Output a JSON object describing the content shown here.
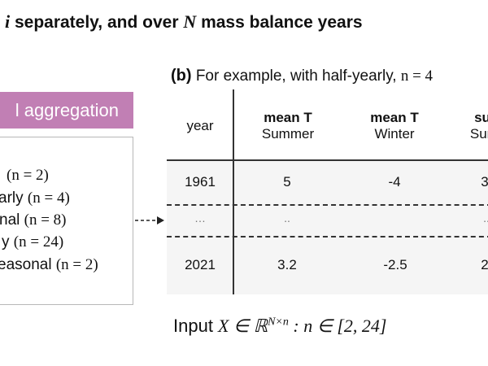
{
  "title": {
    "var_i": "i",
    "text1": " separately, and over ",
    "var_N": "N",
    "text2": " mass balance years"
  },
  "aggregation": {
    "header": "l aggregation",
    "items": [
      {
        "label": "",
        "n": "(n = 2)"
      },
      {
        "label": "arly ",
        "n": "(n = 4)"
      },
      {
        "label": "nal ",
        "n": "(n = 8)"
      },
      {
        "label": "y ",
        "n": "(n = 24)"
      },
      {
        "label": "easonal ",
        "n": "(n = 2)"
      }
    ]
  },
  "table": {
    "caption_label": "(b)",
    "caption_text": " For example, with half-yearly, ",
    "caption_math": "n =  4",
    "headers": [
      {
        "bold": "",
        "sub": "year"
      },
      {
        "bold": "mean T",
        "sub": "Summer"
      },
      {
        "bold": "mean T",
        "sub": "Winter"
      },
      {
        "bold": "su",
        "sub": "Sun"
      }
    ],
    "rows": [
      [
        "1961",
        "5",
        "-4",
        "3"
      ],
      [
        "…",
        "..",
        "",
        ".."
      ],
      [
        "2021",
        "3.2",
        "-2.5",
        "2"
      ]
    ]
  },
  "formula": {
    "prefix": "Input ",
    "math": "X ∈ ℝ",
    "sup": "N×n",
    "suffix": " : n ∈ [2, 24]"
  }
}
